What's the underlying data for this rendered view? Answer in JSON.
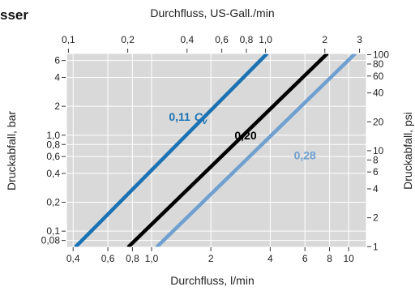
{
  "page_title": "sser",
  "colors": {
    "plot_background": "#d9d9d9",
    "grid": "#ffffff",
    "axis": "#333333",
    "text": "#222222"
  },
  "chart_data": {
    "type": "line",
    "title": "",
    "log_x": true,
    "log_y": true,
    "grid": true,
    "xlabel": "Durchfluss, l/min",
    "x2label": "Durchfluss, US-Gall./min",
    "ylabel": "Druckabfall, bar",
    "y2label": "Druckabfall, psi",
    "xlim": [
      0.37,
      12.3
    ],
    "ylim": [
      0.068,
      7.1
    ],
    "x_ticks": [
      {
        "value": 0.4,
        "label": "0,4"
      },
      {
        "value": 0.6,
        "label": "0,6"
      },
      {
        "value": 0.8,
        "label": "0,8"
      },
      {
        "value": 1.0,
        "label": "1,0"
      },
      {
        "value": 2,
        "label": "2"
      },
      {
        "value": 4,
        "label": "4"
      },
      {
        "value": 6,
        "label": "6"
      },
      {
        "value": 8,
        "label": "8"
      },
      {
        "value": 10,
        "label": "10"
      }
    ],
    "x2_ticks": [
      {
        "value": 0.1,
        "label": "0,1"
      },
      {
        "value": 0.2,
        "label": "0,2"
      },
      {
        "value": 0.4,
        "label": "0,4"
      },
      {
        "value": 0.6,
        "label": "0,6"
      },
      {
        "value": 0.8,
        "label": "0,8"
      },
      {
        "value": 1.0,
        "label": "1,0"
      },
      {
        "value": 2,
        "label": "2"
      },
      {
        "value": 3,
        "label": "3"
      }
    ],
    "y_ticks": [
      {
        "value": 0.08,
        "label": "0,08"
      },
      {
        "value": 0.1,
        "label": "0,1"
      },
      {
        "value": 0.2,
        "label": "0,2"
      },
      {
        "value": 0.4,
        "label": "0,4"
      },
      {
        "value": 0.6,
        "label": "0,6"
      },
      {
        "value": 0.8,
        "label": "0,8"
      },
      {
        "value": 1.0,
        "label": "1,0"
      },
      {
        "value": 2,
        "label": "2"
      },
      {
        "value": 4,
        "label": "4"
      },
      {
        "value": 6,
        "label": "6"
      }
    ],
    "y2_ticks": [
      {
        "value": 1,
        "label": "1"
      },
      {
        "value": 2,
        "label": "2"
      },
      {
        "value": 4,
        "label": "4"
      },
      {
        "value": 6,
        "label": "6"
      },
      {
        "value": 8,
        "label": "8"
      },
      {
        "value": 10,
        "label": "10"
      },
      {
        "value": 20,
        "label": "20"
      },
      {
        "value": 40,
        "label": "40"
      },
      {
        "value": 60,
        "label": "60"
      },
      {
        "value": 80,
        "label": "80"
      },
      {
        "value": 100,
        "label": "100"
      }
    ],
    "series": [
      {
        "name": "0,11",
        "name_suffix": "C",
        "name_subscript": "v",
        "color": "#1a72b4",
        "x": [
          0.41,
          3.86
        ],
        "y": [
          0.068,
          7.1
        ]
      },
      {
        "name": "0,20",
        "color": "#000000",
        "x": [
          0.76,
          7.8
        ],
        "y": [
          0.068,
          7.1
        ]
      },
      {
        "name": "0,28",
        "color": "#6fa0cf",
        "x": [
          1.06,
          10.8
        ],
        "y": [
          0.068,
          7.1
        ]
      }
    ]
  }
}
